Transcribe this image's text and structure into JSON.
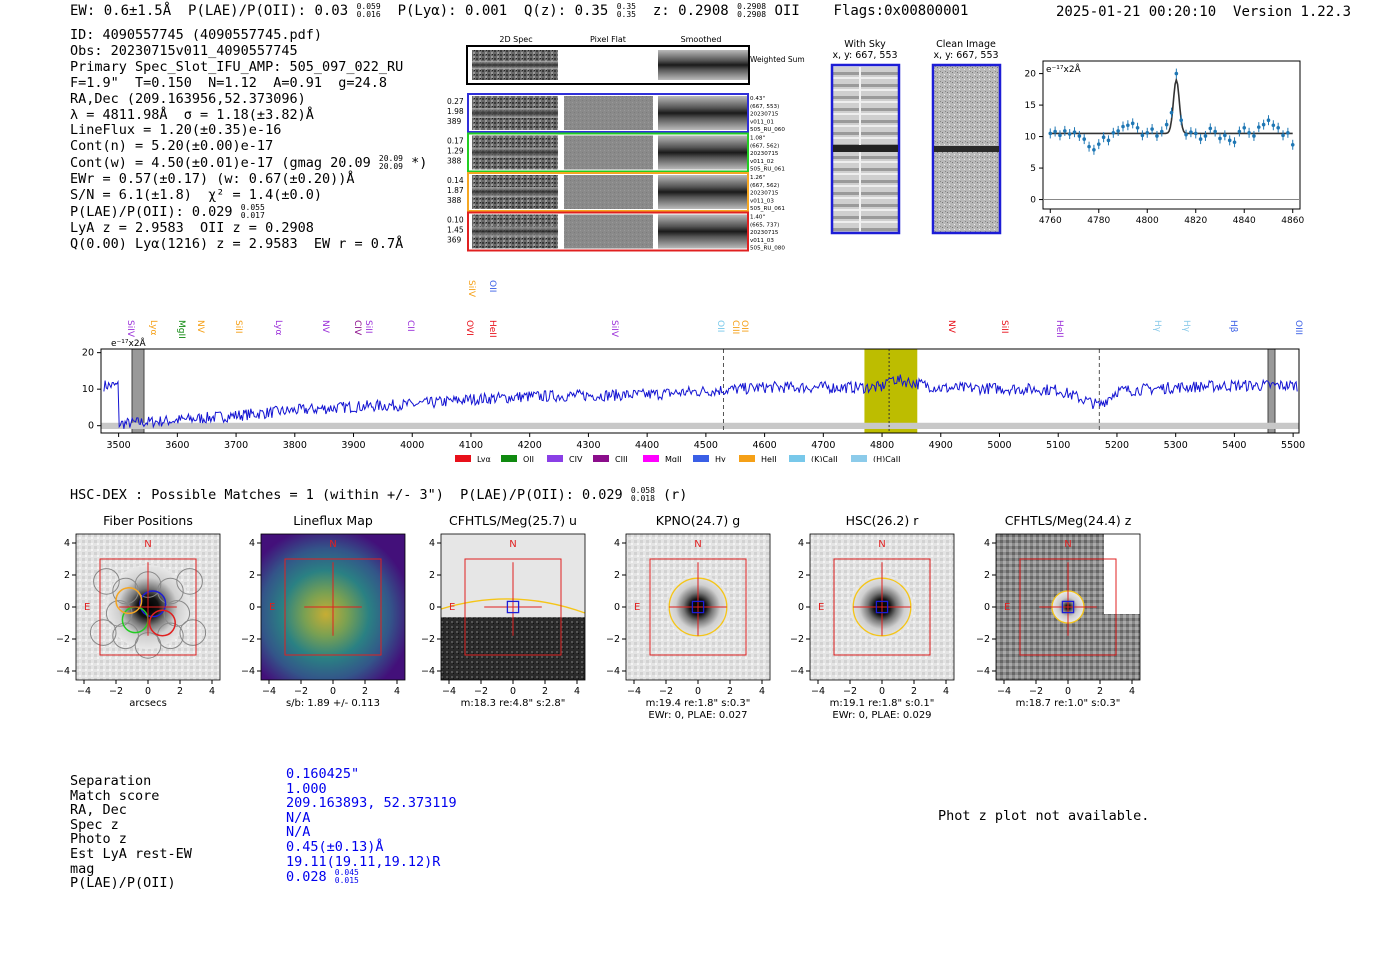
{
  "top_bar": {
    "ew": "EW: 0.6±1.5Å",
    "plae_label": "P(LAE)/P(OII): 0.03",
    "plae_hi": "0.059",
    "plae_lo": "0.016",
    "plya": "P(Lyα): 0.001",
    "qz_label": "Q(z): 0.35",
    "qz_hi": "0.35",
    "qz_lo": "0.35",
    "z_label": "z: 0.2908",
    "z_hi": "0.2908",
    "z_lo": "0.2908",
    "z_line": "OII",
    "flags": "Flags:0x00800001",
    "timestamp": "2025-01-21 00:20:10",
    "version": "Version 1.22.3"
  },
  "info": {
    "id": "ID: 4090557745 (4090557745.pdf)",
    "obs": "Obs: 20230715v011_4090557745",
    "primary": "Primary Spec_Slot_IFU_AMP: 505_097_022_RU",
    "fline": "F=1.9\"  T=0.150  N=1.12  A=0.91  g=24.8",
    "radec": "RA,Dec (209.163956,52.373096)",
    "lambda": "λ = 4811.98Å  σ = 1.18(±3.82)Å",
    "lineflux": "LineFlux = 1.20(±0.35)e-16",
    "contn": "Cont(n) = 5.20(±0.00)e-17",
    "contw": "Cont(w) = 4.50(±0.01)e-17 (gmag 20.09",
    "contw_hi": "20.09",
    "contw_lo": "20.09",
    "contw_end": " *)",
    "ewr": "EWr = 0.57(±0.17) (w: 0.67(±0.20))Å",
    "sn": "S/N = 6.1(±1.8)  χ² = 1.4(±0.0)",
    "plae": "P(LAE)/P(OII): 0.029",
    "plae_hi": "0.055",
    "plae_lo": "0.017",
    "lyaz": "LyA z = 2.9583  OII z = 0.2908",
    "q": "Q(0.00) Lyα(1216) z = 2.9583  EW r = 0.7Å"
  },
  "cutouts": {
    "headers": [
      "2D Spec",
      "Pixel Flat",
      "Smoothed"
    ],
    "weighted_sum": "Weighted Sum",
    "rows": [
      {
        "left": [
          "0.27",
          "1.98",
          "389"
        ],
        "right": [
          "0.43\"",
          "(667, 553)",
          "20230715",
          "v011_01",
          "505_RU_060"
        ],
        "color": "#2f2fd8"
      },
      {
        "left": [
          "0.17",
          "1.29",
          "388"
        ],
        "right": [
          "1.08\"",
          "(667, 562)",
          "20230715",
          "v011_02",
          "505_RU_061"
        ],
        "color": "#22cc22"
      },
      {
        "left": [
          "0.14",
          "1.87",
          "388"
        ],
        "right": [
          "1.26\"",
          "(667, 562)",
          "20230715",
          "v011_03",
          "505_RU_061"
        ],
        "color": "#f5a623"
      },
      {
        "left": [
          "0.10",
          "1.45",
          "369"
        ],
        "right": [
          "1.40\"",
          "(665, 737)",
          "20230715",
          "v011_03",
          "505_RU_080"
        ],
        "color": "#e02020"
      }
    ]
  },
  "sky_panel": {
    "title": "With Sky",
    "sub": "x, y: 667, 553"
  },
  "clean_panel": {
    "title": "Clean Image",
    "sub": "x, y: 667, 553"
  },
  "zoom_plot": {
    "unit": "e⁻¹⁷x2Å",
    "x_ticks": [
      "4760",
      "4780",
      "4800",
      "4820",
      "4840",
      "4860"
    ],
    "y_ticks": [
      "0",
      "5",
      "10",
      "15",
      "20"
    ]
  },
  "spectrum": {
    "unit": "e⁻¹⁷x2Å",
    "x_ticks": [
      "3500",
      "3600",
      "3700",
      "3800",
      "3900",
      "4000",
      "4100",
      "4200",
      "4300",
      "4400",
      "4500",
      "4600",
      "4700",
      "4800",
      "4900",
      "5000",
      "5100",
      "5200",
      "5300",
      "5400",
      "5500"
    ],
    "y_ticks": [
      "0",
      "10",
      "20"
    ],
    "legend": [
      {
        "label": "Lyα",
        "color": "#e8101a"
      },
      {
        "label": "OII",
        "color": "#108a10"
      },
      {
        "label": "CIV",
        "color": "#8a3fe6"
      },
      {
        "label": "CIII",
        "color": "#8b0d8b"
      },
      {
        "label": "MgII",
        "color": "#ff00ff"
      },
      {
        "label": "Hγ",
        "color": "#3a5fe6"
      },
      {
        "label": "HeII",
        "color": "#f5a017"
      },
      {
        "label": "(K)CaII",
        "color": "#78c8ea"
      },
      {
        "label": "(H)CaII",
        "color": "#8ccbea"
      }
    ],
    "line_labels": [
      {
        "t": "SiIV",
        "c": "#9b30d9",
        "x": 125,
        "row": 1
      },
      {
        "t": "Lyα",
        "c": "#f5a017",
        "x": 148,
        "row": 1
      },
      {
        "t": "MgII",
        "c": "#108a10",
        "x": 176,
        "row": 1
      },
      {
        "t": "NV",
        "c": "#f5a017",
        "x": 195,
        "row": 1
      },
      {
        "t": "SiII",
        "c": "#f5a017",
        "x": 233,
        "row": 1
      },
      {
        "t": "Lyα",
        "c": "#9b30d9",
        "x": 273,
        "row": 1
      },
      {
        "t": "NV",
        "c": "#9b30d9",
        "x": 320,
        "row": 1
      },
      {
        "t": "CIV",
        "c": "#8b0d8b",
        "x": 352,
        "row": 1
      },
      {
        "t": "SiII",
        "c": "#9b30d9",
        "x": 363,
        "row": 1
      },
      {
        "t": "CII",
        "c": "#9b30d9",
        "x": 405,
        "row": 1
      },
      {
        "t": "OVI",
        "c": "#e8101a",
        "x": 464,
        "row": 1
      },
      {
        "t": "SiIV",
        "c": "#f5a017",
        "x": 466,
        "row": 0
      },
      {
        "t": "OII",
        "c": "#3a5fe6",
        "x": 487,
        "row": 0
      },
      {
        "t": "HeII",
        "c": "#e8101a",
        "x": 487,
        "row": 1
      },
      {
        "t": "SiIV",
        "c": "#9b30d9",
        "x": 609,
        "row": 1
      },
      {
        "t": "OII",
        "c": "#78c8ea",
        "x": 715,
        "row": 1
      },
      {
        "t": "CIII",
        "c": "#f5a017",
        "x": 730,
        "row": 1
      },
      {
        "t": "OII",
        "c": "#f5a017",
        "x": 739,
        "row": 1
      },
      {
        "t": "NV",
        "c": "#e8101a",
        "x": 946,
        "row": 1
      },
      {
        "t": "SiII",
        "c": "#e8101a",
        "x": 999,
        "row": 1
      },
      {
        "t": "HeII",
        "c": "#9b30d9",
        "x": 1054,
        "row": 1
      },
      {
        "t": "Hγ",
        "c": "#8ccbea",
        "x": 1152,
        "row": 1
      },
      {
        "t": "Hγ",
        "c": "#8ccbea",
        "x": 1181,
        "row": 1
      },
      {
        "t": "Hβ",
        "c": "#3a5fe6",
        "x": 1228,
        "row": 1
      },
      {
        "t": "OIII",
        "c": "#3a5fe6",
        "x": 1293,
        "row": 1
      }
    ]
  },
  "hsc": {
    "header": "HSC-DEX : Possible Matches = 1 (within +/- 3\")  P(LAE)/P(OII): 0.029",
    "hi": "0.058",
    "lo": "0.018",
    "end": " (r)"
  },
  "image_panels": [
    {
      "title": "Fiber Positions",
      "cap1": "arcsecs",
      "cap2": ""
    },
    {
      "title": "Lineflux Map",
      "cap1": "s/b: 1.89 +/- 0.113",
      "cap2": ""
    },
    {
      "title": "CFHTLS/Meg(25.7) u",
      "cap1": "m:18.3  re:4.8\"  s:2.8\"",
      "cap2": ""
    },
    {
      "title": "KPNO(24.7) g",
      "cap1": "m:19.4  re:1.8\"  s:0.3\"",
      "cap2": "EWr: 0, PLAE: 0.027"
    },
    {
      "title": "HSC(26.2) r",
      "cap1": "m:19.1  re:1.8\"  s:0.1\"",
      "cap2": "EWr: 0, PLAE: 0.029"
    },
    {
      "title": "CFHTLS/Meg(24.4) z",
      "cap1": "m:18.7  re:1.0\"  s:0.3\"",
      "cap2": ""
    }
  ],
  "panel_ticks": [
    "−4",
    "−2",
    "0",
    "2",
    "4"
  ],
  "panel_n": "N",
  "panel_e": "E",
  "match_table": {
    "labels": [
      "Separation",
      "Match score",
      "RA, Dec",
      "Spec z",
      "Photo z",
      "Est LyA rest-EW",
      "mag",
      "P(LAE)/P(OII)"
    ],
    "values": [
      "0.160425\"",
      "1.000",
      "209.163893, 52.373119",
      "N/A",
      "N/A",
      "0.45(±0.13)Å",
      "19.11(19.11,19.12)R",
      "0.028"
    ],
    "plae_hi": "0.045",
    "plae_lo": "0.015"
  },
  "photz_note": "Phot z plot not available.",
  "chart_data": [
    {
      "type": "line",
      "title": "",
      "xlabel": "",
      "ylabel": "e⁻¹⁷x2Å",
      "xlim": [
        3470,
        5510
      ],
      "ylim": [
        -2,
        21
      ],
      "grid": false,
      "highlight_band": [
        4770,
        4860
      ],
      "peak": {
        "x": 4812,
        "y": 13
      },
      "continuum_level": 10,
      "series": [
        {
          "values_note": "",
          "x": [
            3500,
            3600,
            3700,
            3800,
            3900,
            4000,
            4100,
            4200,
            4300,
            4400,
            4500,
            4600,
            4700,
            4800,
            4812,
            4900,
            5000,
            5100,
            5170,
            5200,
            5300,
            5400,
            5500
          ],
          "y": [
            0.5,
            1.5,
            2.8,
            4.2,
            5.2,
            5.8,
            7.2,
            8.0,
            8.3,
            8.5,
            9.5,
            10.5,
            10.5,
            10.5,
            13,
            10.3,
            10.2,
            9.8,
            5.5,
            9.5,
            10.5,
            11,
            11
          ]
        }
      ]
    },
    {
      "type": "scatter",
      "title": "",
      "xlabel": "",
      "ylabel": "e⁻¹⁷x2Å",
      "xlim": [
        4757,
        4863
      ],
      "ylim": [
        -1.5,
        22
      ],
      "grid": false,
      "series": [
        {
          "x": [
            4760,
            4762,
            4764,
            4766,
            4768,
            4770,
            4772,
            4774,
            4776,
            4778,
            4780,
            4782,
            4784,
            4786,
            4788,
            4790,
            4792,
            4794,
            4796,
            4798,
            4800,
            4802,
            4804,
            4806,
            4808,
            4810,
            4812,
            4814,
            4816,
            4818,
            4820,
            4822,
            4824,
            4826,
            4828,
            4830,
            4832,
            4834,
            4836,
            4838,
            4840,
            4842,
            4844,
            4846,
            4848,
            4850,
            4852,
            4854,
            4856,
            4858,
            4860
          ],
          "y": [
            10.5,
            10.8,
            10.2,
            10.9,
            10.4,
            10.7,
            10.1,
            9.6,
            8.4,
            7.9,
            8.8,
            9.9,
            9.4,
            10.6,
            10.9,
            11.6,
            11.8,
            12.1,
            11.4,
            10.2,
            10.6,
            11.2,
            10.1,
            10.8,
            11.9,
            13.8,
            20.0,
            12.6,
            10.3,
            10.7,
            10.5,
            9.6,
            10.1,
            11.3,
            10.8,
            9.7,
            10.2,
            9.4,
            9.1,
            10.8,
            11.4,
            10.6,
            10.1,
            11.5,
            11.9,
            12.6,
            11.8,
            11.4,
            10.2,
            10.6,
            8.7
          ]
        },
        {
          "name": "",
          "model": "gaussian",
          "center": 4812,
          "amplitude": 8.5,
          "sigma": 1.2,
          "baseline": 10.5
        }
      ]
    }
  ]
}
